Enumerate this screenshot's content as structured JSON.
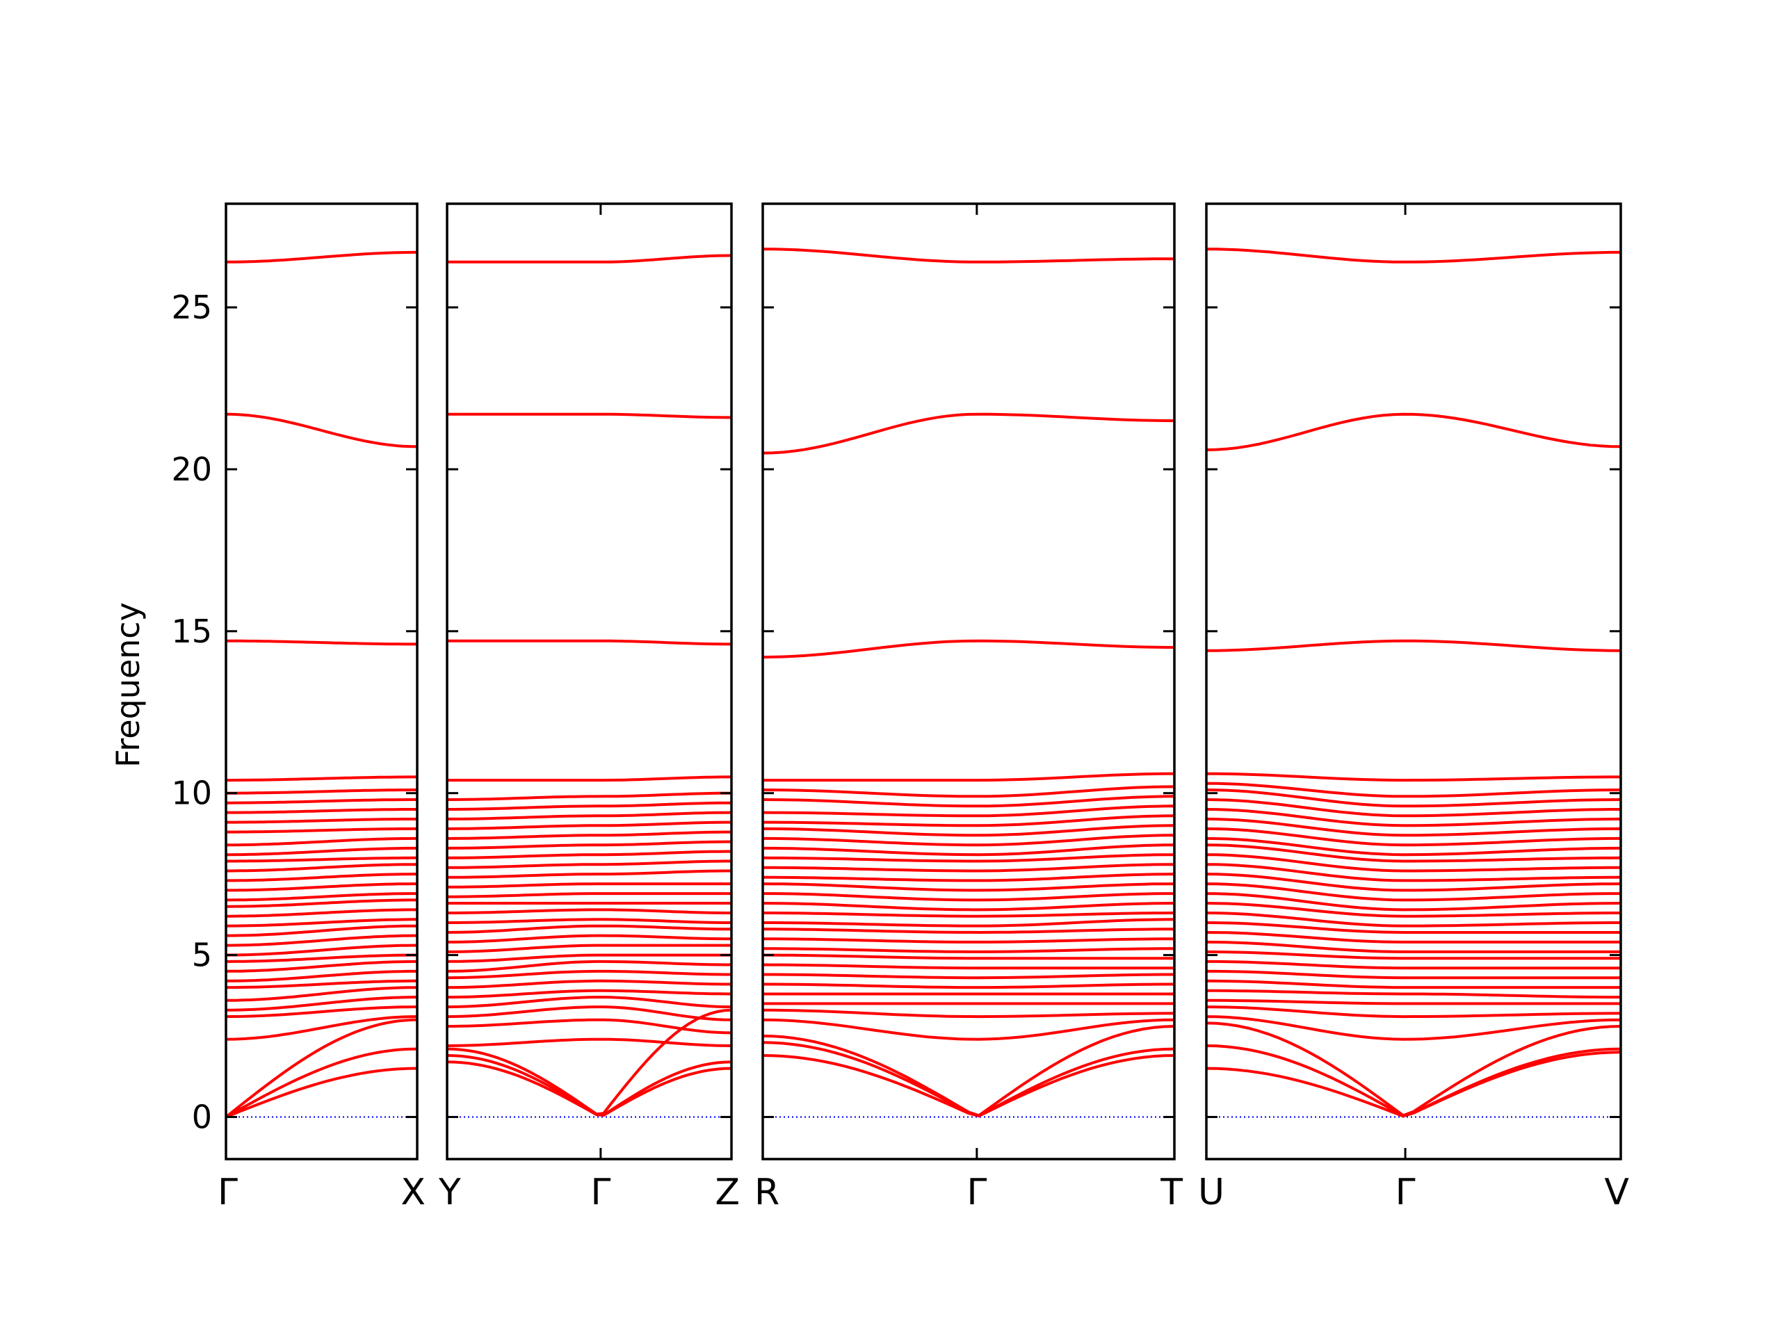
{
  "chart_data": {
    "type": "line",
    "title": "",
    "ylabel": "Frequency",
    "ylim": [
      -1.3,
      28.2
    ],
    "yticks": [
      0,
      5,
      10,
      15,
      20,
      25
    ],
    "grid": false,
    "legend": "none",
    "band_color": "#ff0000",
    "zero_line_color": "#0000ff",
    "panels": [
      {
        "labels": [
          "Γ",
          "X"
        ],
        "ticks": [
          0,
          1
        ],
        "acoustic_start": [
          0,
          0,
          0
        ],
        "acoustic_end": [
          1.5,
          2.1,
          3.0
        ],
        "optical_start": [
          2.4,
          3.1,
          3.3,
          3.6,
          4.0,
          4.2,
          4.5,
          4.8,
          5.0,
          5.3,
          5.6,
          5.9,
          6.2,
          6.5,
          6.7,
          7.0,
          7.3,
          7.6,
          7.9,
          8.1,
          8.4,
          8.8,
          9.1,
          9.4,
          9.7,
          10.0,
          10.4,
          14.7,
          21.7,
          26.4
        ],
        "optical_end": [
          3.1,
          3.4,
          3.7,
          4.0,
          4.2,
          4.5,
          4.8,
          5.0,
          5.3,
          5.6,
          5.9,
          6.1,
          6.4,
          6.7,
          6.9,
          7.2,
          7.5,
          7.8,
          8.0,
          8.3,
          8.6,
          8.9,
          9.2,
          9.5,
          9.8,
          10.1,
          10.5,
          14.6,
          20.7,
          26.7
        ]
      },
      {
        "labels": [
          "Y",
          "Γ",
          "Z"
        ],
        "ticks": [
          0,
          0.54,
          1
        ],
        "acoustic_start": [
          1.7,
          1.9,
          2.1
        ],
        "acoustic_end": [
          1.5,
          1.7,
          3.3
        ],
        "optical_start": [
          2.2,
          2.8,
          3.1,
          3.4,
          3.7,
          4.0,
          4.3,
          4.5,
          4.8,
          5.1,
          5.4,
          5.7,
          6.0,
          6.3,
          6.6,
          6.8,
          7.1,
          7.4,
          7.7,
          8.0,
          8.3,
          8.6,
          8.9,
          9.2,
          9.5,
          9.8,
          10.4,
          14.7,
          21.7,
          26.4
        ],
        "optical_mid": [
          2.4,
          3.0,
          3.4,
          3.7,
          3.9,
          4.2,
          4.5,
          4.8,
          5.0,
          5.3,
          5.6,
          5.9,
          6.1,
          6.4,
          6.6,
          6.9,
          7.2,
          7.5,
          7.8,
          8.1,
          8.4,
          8.7,
          9.0,
          9.3,
          9.6,
          9.9,
          10.4,
          14.7,
          21.7,
          26.4
        ],
        "optical_end": [
          2.2,
          2.6,
          3.0,
          3.4,
          3.8,
          4.1,
          4.4,
          4.7,
          5.0,
          5.3,
          5.5,
          5.8,
          6.0,
          6.3,
          6.6,
          6.9,
          7.2,
          7.6,
          7.9,
          8.2,
          8.5,
          8.8,
          9.1,
          9.4,
          9.7,
          10.0,
          10.5,
          14.6,
          21.6,
          26.6
        ]
      },
      {
        "labels": [
          "R",
          "Γ",
          "T"
        ],
        "ticks": [
          0,
          0.52,
          1
        ],
        "acoustic_start": [
          1.9,
          2.3,
          2.5
        ],
        "acoustic_end": [
          1.9,
          2.1,
          2.8
        ],
        "optical_start": [
          3.0,
          3.3,
          3.5,
          3.8,
          4.1,
          4.4,
          4.7,
          5.0,
          5.2,
          5.5,
          5.8,
          6.0,
          6.3,
          6.6,
          6.9,
          7.2,
          7.4,
          7.7,
          8.0,
          8.3,
          8.6,
          8.9,
          9.1,
          9.4,
          9.8,
          10.1,
          10.4,
          14.2,
          20.5,
          26.8
        ],
        "optical_mid": [
          2.4,
          3.1,
          3.5,
          3.8,
          4.0,
          4.3,
          4.6,
          4.9,
          5.1,
          5.4,
          5.7,
          5.9,
          6.2,
          6.4,
          6.7,
          7.0,
          7.3,
          7.6,
          7.9,
          8.1,
          8.4,
          8.7,
          9.0,
          9.3,
          9.6,
          9.9,
          10.4,
          14.7,
          21.7,
          26.4
        ],
        "optical_end": [
          3.0,
          3.2,
          3.5,
          3.8,
          4.1,
          4.4,
          4.6,
          4.9,
          5.2,
          5.5,
          5.8,
          6.1,
          6.3,
          6.6,
          6.9,
          7.2,
          7.5,
          7.8,
          8.1,
          8.4,
          8.7,
          9.0,
          9.3,
          9.6,
          9.9,
          10.2,
          10.6,
          14.5,
          21.5,
          26.5
        ]
      },
      {
        "labels": [
          "U",
          "Γ",
          "V"
        ],
        "ticks": [
          0,
          0.48,
          1
        ],
        "acoustic_start": [
          1.5,
          2.2,
          2.9
        ],
        "acoustic_end": [
          2.0,
          2.1,
          2.8
        ],
        "optical_start": [
          3.1,
          3.4,
          3.6,
          3.9,
          4.2,
          4.5,
          4.8,
          5.1,
          5.4,
          5.7,
          6.0,
          6.3,
          6.6,
          6.9,
          7.2,
          7.5,
          7.8,
          8.1,
          8.4,
          8.6,
          8.9,
          9.2,
          9.5,
          9.8,
          10.1,
          10.3,
          10.6,
          14.4,
          20.6,
          26.8
        ],
        "optical_mid": [
          2.4,
          3.1,
          3.5,
          3.8,
          4.0,
          4.3,
          4.6,
          4.9,
          5.1,
          5.4,
          5.7,
          5.9,
          6.2,
          6.4,
          6.7,
          7.0,
          7.3,
          7.6,
          7.9,
          8.1,
          8.4,
          8.7,
          9.0,
          9.3,
          9.6,
          9.9,
          10.4,
          14.7,
          21.7,
          26.4
        ],
        "optical_end": [
          3.0,
          3.2,
          3.5,
          3.7,
          4.0,
          4.3,
          4.6,
          4.9,
          5.1,
          5.4,
          5.7,
          6.0,
          6.3,
          6.6,
          6.9,
          7.2,
          7.4,
          7.7,
          8.0,
          8.3,
          8.6,
          8.9,
          9.2,
          9.5,
          9.8,
          10.1,
          10.5,
          14.4,
          20.7,
          26.7
        ]
      }
    ]
  }
}
